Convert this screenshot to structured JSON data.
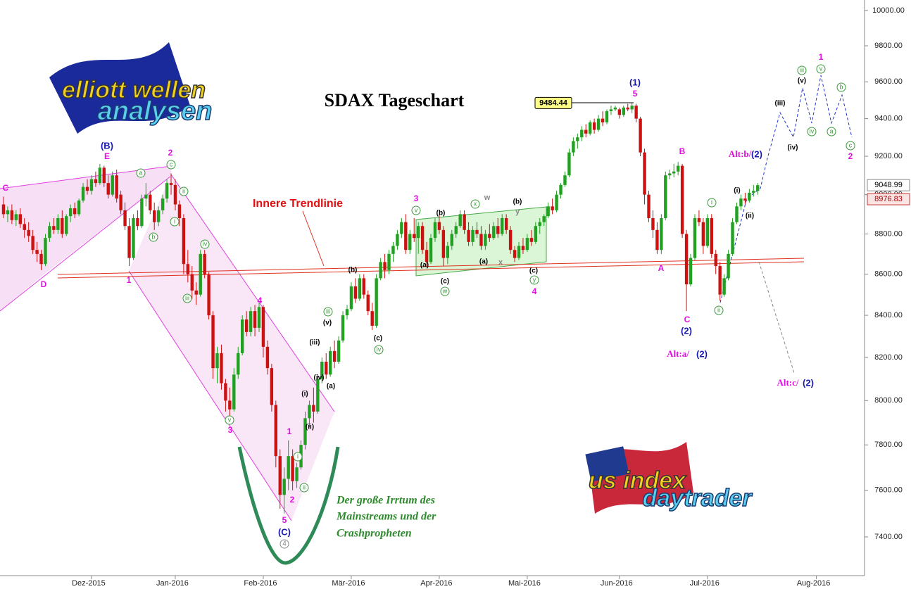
{
  "chart_data": {
    "type": "candlestick",
    "title": "SDAX Tageschart",
    "trendline_label": "Innere Trendlinie",
    "note": [
      "Der große Irrtum des",
      "Mainstreams und der",
      "Crashpropheten"
    ],
    "logo_top": [
      "elliott wellen",
      "analysen"
    ],
    "logo_bottom": [
      "us index",
      "daytrader"
    ],
    "log_scale": true,
    "up_color": "#22a022",
    "down_color": "#cc1111",
    "ylim": [
      7238,
      10060
    ],
    "yticks": [
      {
        "value": 7400,
        "label": "7400.00"
      },
      {
        "value": 7600,
        "label": "7600.00"
      },
      {
        "value": 7800,
        "label": "7800.00"
      },
      {
        "value": 8000,
        "label": "8000.00"
      },
      {
        "value": 8200,
        "label": "8200.00"
      },
      {
        "value": 8400,
        "label": "8400.00"
      },
      {
        "value": 8600,
        "label": "8600.00"
      },
      {
        "value": 8800,
        "label": "8800.00"
      },
      {
        "value": 9000,
        "label": "9000.00"
      },
      {
        "value": 9200,
        "label": "9200.00"
      },
      {
        "value": 9400,
        "label": "9400.00"
      },
      {
        "value": 9600,
        "label": "9600.00"
      },
      {
        "value": 9800,
        "label": "9800.00"
      },
      {
        "value": 10000,
        "label": "10000.00"
      }
    ],
    "peak_label": 9484.44,
    "price_markers": [
      9048.99,
      8976.83
    ],
    "categories": [
      null,
      null,
      null,
      null,
      null,
      null,
      null,
      null,
      null,
      null,
      null,
      null,
      null,
      null,
      null,
      null,
      null,
      null,
      null,
      null,
      null,
      "Dez-2015",
      null,
      null,
      null,
      null,
      null,
      null,
      null,
      null,
      null,
      null,
      null,
      null,
      null,
      null,
      null,
      null,
      null,
      null,
      null,
      "Jan-2016",
      null,
      null,
      null,
      null,
      null,
      null,
      null,
      null,
      null,
      null,
      null,
      null,
      null,
      null,
      null,
      null,
      null,
      null,
      null,
      null,
      "Feb-2016",
      null,
      null,
      null,
      null,
      null,
      null,
      null,
      null,
      null,
      null,
      null,
      null,
      null,
      null,
      null,
      null,
      null,
      null,
      null,
      null,
      "Mär-2016",
      null,
      null,
      null,
      null,
      null,
      null,
      null,
      null,
      null,
      null,
      null,
      null,
      null,
      null,
      null,
      null,
      null,
      null,
      null,
      null,
      "Apr-2016",
      null,
      null,
      null,
      null,
      null,
      null,
      null,
      null,
      null,
      null,
      null,
      null,
      null,
      null,
      null,
      null,
      null,
      null,
      null,
      null,
      "Mai-2016",
      null,
      null,
      null,
      null,
      null,
      null,
      null,
      null,
      null,
      null,
      null,
      null,
      null,
      null,
      null,
      null,
      null,
      null,
      null,
      null,
      null,
      "Jun-2016",
      null,
      null,
      null,
      null,
      null,
      null,
      null,
      null,
      null,
      null,
      null,
      null,
      null,
      null,
      null,
      null,
      null,
      null,
      null,
      null,
      "Jul-2016",
      null,
      null,
      null,
      null,
      null,
      null,
      null,
      null,
      null,
      null,
      null,
      null,
      null,
      null,
      null,
      null,
      null,
      null,
      null,
      null,
      null,
      null,
      null,
      null,
      null,
      "Aug-2016",
      null,
      null,
      null,
      null,
      null,
      null,
      null,
      null,
      null,
      null,
      null
    ],
    "candles": [
      [
        8950,
        8990,
        8880,
        8900
      ],
      [
        8900,
        8940,
        8860,
        8920
      ],
      [
        8920,
        8950,
        8850,
        8870
      ],
      [
        8870,
        8920,
        8840,
        8900
      ],
      [
        8900,
        8930,
        8830,
        8850
      ],
      [
        8850,
        8880,
        8780,
        8820
      ],
      [
        8820,
        8860,
        8760,
        8790
      ],
      [
        8790,
        8820,
        8700,
        8720
      ],
      [
        8720,
        8760,
        8660,
        8700
      ],
      [
        8700,
        8720,
        8620,
        8650
      ],
      [
        8650,
        8800,
        8640,
        8780
      ],
      [
        8780,
        8860,
        8760,
        8840
      ],
      [
        8840,
        8880,
        8800,
        8820
      ],
      [
        8820,
        8900,
        8800,
        8880
      ],
      [
        8880,
        8920,
        8780,
        8800
      ],
      [
        8800,
        8900,
        8790,
        8890
      ],
      [
        8890,
        8950,
        8860,
        8930
      ],
      [
        8930,
        8960,
        8880,
        8900
      ],
      [
        8900,
        8980,
        8890,
        8970
      ],
      [
        8970,
        9060,
        8960,
        9040
      ],
      [
        9040,
        9080,
        9000,
        9020
      ],
      [
        9020,
        9100,
        9000,
        9080
      ],
      [
        9080,
        9120,
        9040,
        9060
      ],
      [
        9060,
        9160,
        9050,
        9140
      ],
      [
        9140,
        9150,
        9040,
        9060
      ],
      [
        9060,
        9100,
        8980,
        9000
      ],
      [
        9000,
        9120,
        8990,
        9100
      ],
      [
        9100,
        9130,
        8960,
        8980
      ],
      [
        9000,
        9020,
        8900,
        8920
      ],
      [
        8920,
        8960,
        8820,
        8840
      ],
      [
        8840,
        8880,
        8640,
        8680
      ],
      [
        8680,
        8900,
        8670,
        8880
      ],
      [
        8880,
        8920,
        8820,
        8840
      ],
      [
        8840,
        9000,
        8830,
        8980
      ],
      [
        8980,
        9060,
        8940,
        9000
      ],
      [
        9000,
        9020,
        8900,
        8920
      ],
      [
        8920,
        8960,
        8820,
        8860
      ],
      [
        8860,
        8940,
        8840,
        8920
      ],
      [
        8920,
        9000,
        8900,
        8980
      ],
      [
        8980,
        9080,
        8960,
        9060
      ],
      [
        9060,
        9110,
        9000,
        9050
      ],
      [
        9050,
        9080,
        8920,
        8950
      ],
      [
        8950,
        8970,
        8840,
        8880
      ],
      [
        8880,
        8900,
        8600,
        8650
      ],
      [
        8650,
        8720,
        8560,
        8600
      ],
      [
        8600,
        8640,
        8480,
        8520
      ],
      [
        8520,
        8560,
        8450,
        8500
      ],
      [
        8500,
        8720,
        8490,
        8700
      ],
      [
        8700,
        8720,
        8580,
        8600
      ],
      [
        8600,
        8610,
        8380,
        8400
      ],
      [
        8400,
        8420,
        8100,
        8150
      ],
      [
        8150,
        8250,
        8080,
        8220
      ],
      [
        8220,
        8260,
        8050,
        8080
      ],
      [
        8080,
        8100,
        7950,
        8000
      ],
      [
        8000,
        8060,
        7920,
        7960
      ],
      [
        7960,
        8150,
        7950,
        8120
      ],
      [
        8120,
        8250,
        8100,
        8220
      ],
      [
        8220,
        8400,
        8210,
        8380
      ],
      [
        8380,
        8420,
        8300,
        8320
      ],
      [
        8320,
        8440,
        8300,
        8420
      ],
      [
        8420,
        8450,
        8300,
        8340
      ],
      [
        8340,
        8460,
        8320,
        8440
      ],
      [
        8440,
        8450,
        8200,
        8250
      ],
      [
        8250,
        8280,
        8120,
        8150
      ],
      [
        8150,
        8170,
        7950,
        7980
      ],
      [
        7980,
        8000,
        7700,
        7750
      ],
      [
        7750,
        7780,
        7520,
        7580
      ],
      [
        7580,
        7700,
        7500,
        7650
      ],
      [
        7650,
        7820,
        7600,
        7750
      ],
      [
        7750,
        7780,
        7600,
        7640
      ],
      [
        7640,
        7720,
        7610,
        7700
      ],
      [
        7700,
        7820,
        7690,
        7800
      ],
      [
        7800,
        7950,
        7780,
        7920
      ],
      [
        7920,
        8000,
        7880,
        7980
      ],
      [
        7980,
        8060,
        7900,
        7950
      ],
      [
        7950,
        8120,
        7940,
        8100
      ],
      [
        8100,
        8200,
        8080,
        8180
      ],
      [
        8180,
        8220,
        8100,
        8120
      ],
      [
        8120,
        8250,
        8110,
        8230
      ],
      [
        8230,
        8280,
        8150,
        8180
      ],
      [
        8180,
        8300,
        8170,
        8280
      ],
      [
        8280,
        8420,
        8270,
        8400
      ],
      [
        8400,
        8450,
        8380,
        8430
      ],
      [
        8430,
        8560,
        8420,
        8540
      ],
      [
        8540,
        8580,
        8460,
        8480
      ],
      [
        8480,
        8600,
        8470,
        8580
      ],
      [
        8580,
        8600,
        8480,
        8500
      ],
      [
        8500,
        8520,
        8400,
        8420
      ],
      [
        8420,
        8460,
        8330,
        8350
      ],
      [
        8350,
        8600,
        8340,
        8580
      ],
      [
        8580,
        8680,
        8570,
        8660
      ],
      [
        8660,
        8700,
        8580,
        8620
      ],
      [
        8620,
        8720,
        8600,
        8700
      ],
      [
        8700,
        8760,
        8660,
        8740
      ],
      [
        8740,
        8820,
        8720,
        8800
      ],
      [
        8800,
        8880,
        8780,
        8860
      ],
      [
        8860,
        8900,
        8700,
        8720
      ],
      [
        8720,
        8820,
        8700,
        8800
      ],
      [
        8800,
        8880,
        8760,
        8780
      ],
      [
        8780,
        8860,
        8700,
        8840
      ],
      [
        8840,
        8860,
        8700,
        8720
      ],
      [
        8720,
        8760,
        8640,
        8660
      ],
      [
        8660,
        8800,
        8650,
        8780
      ],
      [
        8780,
        8880,
        8760,
        8860
      ],
      [
        8860,
        8900,
        8800,
        8820
      ],
      [
        8820,
        8840,
        8640,
        8680
      ],
      [
        8680,
        8760,
        8650,
        8740
      ],
      [
        8740,
        8820,
        8720,
        8800
      ],
      [
        8800,
        8860,
        8780,
        8840
      ],
      [
        8840,
        8920,
        8830,
        8900
      ],
      [
        8900,
        8920,
        8800,
        8820
      ],
      [
        8820,
        8860,
        8740,
        8760
      ],
      [
        8760,
        8840,
        8740,
        8820
      ],
      [
        8820,
        8860,
        8780,
        8800
      ],
      [
        8800,
        8840,
        8720,
        8740
      ],
      [
        8740,
        8820,
        8720,
        8800
      ],
      [
        8800,
        8850,
        8760,
        8780
      ],
      [
        8780,
        8860,
        8770,
        8840
      ],
      [
        8840,
        8880,
        8780,
        8800
      ],
      [
        8800,
        8900,
        8790,
        8880
      ],
      [
        8880,
        8900,
        8800,
        8820
      ],
      [
        8820,
        8840,
        8700,
        8720
      ],
      [
        8720,
        8740,
        8660,
        8680
      ],
      [
        8680,
        8760,
        8670,
        8740
      ],
      [
        8740,
        8780,
        8700,
        8720
      ],
      [
        8720,
        8800,
        8710,
        8780
      ],
      [
        8780,
        8820,
        8740,
        8760
      ],
      [
        8760,
        8860,
        8750,
        8840
      ],
      [
        8840,
        8880,
        8800,
        8860
      ],
      [
        8860,
        8900,
        8840,
        8890
      ],
      [
        8890,
        8960,
        8880,
        8940
      ],
      [
        8940,
        8980,
        8900,
        8920
      ],
      [
        8920,
        9020,
        8910,
        9000
      ],
      [
        9000,
        9060,
        8980,
        9050
      ],
      [
        9050,
        9120,
        9040,
        9100
      ],
      [
        9100,
        9240,
        9090,
        9220
      ],
      [
        9220,
        9300,
        9200,
        9280
      ],
      [
        9280,
        9320,
        9240,
        9300
      ],
      [
        9300,
        9360,
        9280,
        9340
      ],
      [
        9340,
        9370,
        9300,
        9320
      ],
      [
        9320,
        9390,
        9310,
        9380
      ],
      [
        9380,
        9400,
        9320,
        9340
      ],
      [
        9340,
        9420,
        9330,
        9400
      ],
      [
        9400,
        9440,
        9360,
        9380
      ],
      [
        9380,
        9450,
        9370,
        9440
      ],
      [
        9440,
        9470,
        9420,
        9450
      ],
      [
        9450,
        9470,
        9440,
        9460
      ],
      [
        9450,
        9460,
        9400,
        9420
      ],
      [
        9420,
        9470,
        9410,
        9460
      ],
      [
        9460,
        9480,
        9440,
        9450
      ],
      [
        9450,
        9484.44,
        9430,
        9470
      ],
      [
        9470,
        9480,
        9380,
        9400
      ],
      [
        9400,
        9410,
        9200,
        9220
      ],
      [
        9220,
        9240,
        8950,
        9000
      ],
      [
        9000,
        9020,
        8860,
        8880
      ],
      [
        8880,
        8920,
        8780,
        8820
      ],
      [
        8820,
        8860,
        8700,
        8720
      ],
      [
        8720,
        8900,
        8700,
        8880
      ],
      [
        8880,
        9120,
        8870,
        9100
      ],
      [
        9100,
        9130,
        9080,
        9110
      ],
      [
        9110,
        9160,
        9090,
        9120
      ],
      [
        9120,
        9170,
        9100,
        9150
      ],
      [
        9150,
        9160,
        8780,
        8800
      ],
      [
        8800,
        8820,
        8420,
        8550
      ],
      [
        8550,
        8700,
        8540,
        8680
      ],
      [
        8680,
        8900,
        8670,
        8880
      ],
      [
        8880,
        8920,
        8840,
        8860
      ],
      [
        8860,
        8880,
        8700,
        8740
      ],
      [
        8740,
        8900,
        8730,
        8880
      ],
      [
        8880,
        8900,
        8680,
        8700
      ],
      [
        8700,
        8720,
        8600,
        8640
      ],
      [
        8640,
        8660,
        8470,
        8500
      ],
      [
        8500,
        8600,
        8490,
        8580
      ],
      [
        8580,
        8720,
        8570,
        8700
      ],
      [
        8700,
        8880,
        8690,
        8860
      ],
      [
        8860,
        8960,
        8850,
        8940
      ],
      [
        8940,
        9000,
        8920,
        8980
      ],
      [
        8980,
        9010,
        8950,
        8970
      ],
      [
        8970,
        9030,
        8960,
        9010
      ],
      [
        9010,
        9050,
        8990,
        9020
      ],
      [
        9020,
        9060,
        9000,
        9049
      ],
      null,
      null,
      null,
      null,
      null,
      null,
      null,
      null,
      null,
      null,
      null,
      null,
      null,
      null,
      null,
      null,
      null,
      null,
      null,
      null,
      null,
      null,
      null,
      null,
      null
    ],
    "wave_labels": [
      "C",
      "D",
      "(B)",
      "E",
      "2",
      "a",
      "c",
      "ii",
      "i",
      "b",
      "1",
      "iv",
      "iii",
      "v",
      "3",
      "4",
      "5",
      "(C)",
      "4",
      "2",
      "1",
      "i",
      "ii",
      "(i)",
      "(ii)",
      "(iii)",
      "(iv)",
      "(v)",
      "iii",
      "(a)",
      "(b)",
      "(c)",
      "iv",
      "3",
      "v",
      "(b)",
      "(a)",
      "(c)",
      "w",
      "x",
      "w",
      "(b)",
      "y",
      "(a)",
      "x",
      "(c)",
      "y",
      "4",
      "(1)",
      "5",
      "B",
      "A",
      "C",
      "(2)",
      "Alt:a/",
      "(2)",
      "i",
      "ii",
      "(i)",
      "(ii)",
      "Alt:b/",
      "(2)",
      "(iii)",
      "(iv)",
      "(v)",
      "iii",
      "v",
      "1",
      "iv",
      "a",
      "b",
      "c",
      "2",
      "Alt:c/",
      "(2)"
    ]
  }
}
